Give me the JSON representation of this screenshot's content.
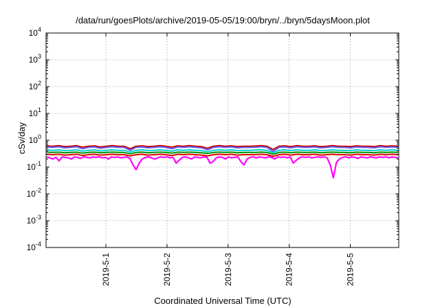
{
  "chart_data": {
    "type": "line",
    "title": "/data/run/goesPlots/archive/2019-05-05/19:00/bryn/../bryn/5daysMoon.plot",
    "xlabel": "Coordinated Universal Time (UTC)",
    "ylabel": "cSv/day",
    "yscale": "log",
    "ylim": [
      0.0001,
      10000
    ],
    "xlim": [
      "2019-04-30 00:30",
      "2019-05-05 19:00"
    ],
    "x_ticks": [
      {
        "date": "2019-05-01",
        "label": "2019-5-1"
      },
      {
        "date": "2019-05-02",
        "label": "2019-5-2"
      },
      {
        "date": "2019-05-03",
        "label": "2019-5-3"
      },
      {
        "date": "2019-05-04",
        "label": "2019-5-4"
      },
      {
        "date": "2019-05-05",
        "label": "2019-5-5"
      }
    ],
    "y_ticks": [
      {
        "value": 0.0001,
        "mantissa": "10",
        "exp": "-4"
      },
      {
        "value": 0.001,
        "mantissa": "10",
        "exp": "-3"
      },
      {
        "value": 0.01,
        "mantissa": "10",
        "exp": "-2"
      },
      {
        "value": 0.1,
        "mantissa": "10",
        "exp": "-1"
      },
      {
        "value": 1,
        "mantissa": "10",
        "exp": "0"
      },
      {
        "value": 10,
        "mantissa": "10",
        "exp": "1"
      },
      {
        "value": 100,
        "mantissa": "10",
        "exp": "2"
      },
      {
        "value": 1000,
        "mantissa": "10",
        "exp": "3"
      },
      {
        "value": 10000,
        "mantissa": "10",
        "exp": "4"
      }
    ],
    "grid": true,
    "series": [
      {
        "color": "#cc0000",
        "values": [
          0.62,
          0.6,
          0.63,
          0.58,
          0.6,
          0.63,
          0.55,
          0.6,
          0.62,
          0.56,
          0.6,
          0.63,
          0.6,
          0.6,
          0.48,
          0.6,
          0.62,
          0.58,
          0.6,
          0.63,
          0.6,
          0.55,
          0.62,
          0.6,
          0.63,
          0.6,
          0.58,
          0.5,
          0.6,
          0.63,
          0.6,
          0.62,
          0.58,
          0.6,
          0.6,
          0.61,
          0.63,
          0.6,
          0.45,
          0.6,
          0.62,
          0.58,
          0.63,
          0.6,
          0.6,
          0.62,
          0.58,
          0.6,
          0.63,
          0.6,
          0.6,
          0.58,
          0.62,
          0.6,
          0.6,
          0.58,
          0.63,
          0.6,
          0.62,
          0.6
        ]
      },
      {
        "color": "#6060ff",
        "values": [
          0.56,
          0.54,
          0.57,
          0.52,
          0.54,
          0.57,
          0.48,
          0.54,
          0.56,
          0.5,
          0.54,
          0.57,
          0.54,
          0.54,
          0.42,
          0.54,
          0.56,
          0.52,
          0.54,
          0.57,
          0.54,
          0.48,
          0.56,
          0.54,
          0.57,
          0.54,
          0.52,
          0.44,
          0.54,
          0.57,
          0.54,
          0.56,
          0.52,
          0.54,
          0.54,
          0.55,
          0.57,
          0.54,
          0.38,
          0.54,
          0.56,
          0.52,
          0.57,
          0.54,
          0.54,
          0.56,
          0.52,
          0.54,
          0.57,
          0.54,
          0.54,
          0.52,
          0.56,
          0.54,
          0.54,
          0.52,
          0.57,
          0.54,
          0.56,
          0.54
        ]
      },
      {
        "color": "#00d0d0",
        "values": [
          0.44,
          0.42,
          0.44,
          0.41,
          0.42,
          0.44,
          0.39,
          0.42,
          0.44,
          0.4,
          0.42,
          0.44,
          0.42,
          0.42,
          0.36,
          0.42,
          0.44,
          0.41,
          0.42,
          0.44,
          0.42,
          0.39,
          0.44,
          0.42,
          0.44,
          0.42,
          0.41,
          0.37,
          0.42,
          0.44,
          0.42,
          0.44,
          0.41,
          0.42,
          0.42,
          0.43,
          0.44,
          0.42,
          0.34,
          0.42,
          0.44,
          0.41,
          0.44,
          0.42,
          0.42,
          0.44,
          0.41,
          0.42,
          0.44,
          0.42,
          0.42,
          0.41,
          0.44,
          0.42,
          0.42,
          0.41,
          0.44,
          0.42,
          0.44,
          0.42
        ]
      },
      {
        "color": "#009000",
        "values": [
          0.36,
          0.35,
          0.36,
          0.34,
          0.35,
          0.36,
          0.33,
          0.35,
          0.36,
          0.34,
          0.35,
          0.36,
          0.35,
          0.35,
          0.31,
          0.35,
          0.36,
          0.34,
          0.35,
          0.36,
          0.35,
          0.33,
          0.36,
          0.35,
          0.36,
          0.35,
          0.34,
          0.32,
          0.35,
          0.36,
          0.35,
          0.36,
          0.34,
          0.35,
          0.35,
          0.35,
          0.36,
          0.35,
          0.3,
          0.35,
          0.36,
          0.34,
          0.36,
          0.35,
          0.35,
          0.36,
          0.34,
          0.35,
          0.36,
          0.35,
          0.35,
          0.34,
          0.36,
          0.35,
          0.35,
          0.34,
          0.36,
          0.35,
          0.36,
          0.35
        ]
      },
      {
        "color": "#e00000",
        "values": [
          0.3,
          0.29,
          0.3,
          0.28,
          0.29,
          0.3,
          0.27,
          0.29,
          0.3,
          0.28,
          0.29,
          0.3,
          0.29,
          0.29,
          0.26,
          0.29,
          0.3,
          0.28,
          0.29,
          0.3,
          0.29,
          0.27,
          0.3,
          0.29,
          0.3,
          0.29,
          0.28,
          0.26,
          0.29,
          0.3,
          0.29,
          0.3,
          0.28,
          0.29,
          0.29,
          0.29,
          0.3,
          0.29,
          0.25,
          0.29,
          0.3,
          0.28,
          0.3,
          0.29,
          0.29,
          0.3,
          0.28,
          0.29,
          0.3,
          0.29,
          0.29,
          0.28,
          0.3,
          0.29,
          0.29,
          0.28,
          0.3,
          0.29,
          0.3,
          0.29
        ]
      },
      {
        "color": "#ff00ff",
        "values": [
          0.24,
          0.22,
          0.2,
          0.23,
          0.17,
          0.24,
          0.23,
          0.22,
          0.2,
          0.24,
          0.23,
          0.21,
          0.24,
          0.23,
          0.22,
          0.24,
          0.23,
          0.24,
          0.22,
          0.23,
          0.2,
          0.24,
          0.23,
          0.24,
          0.22,
          0.23,
          0.24,
          0.21,
          0.12,
          0.08,
          0.14,
          0.2,
          0.23,
          0.24,
          0.22,
          0.2,
          0.22,
          0.24,
          0.23,
          0.24,
          0.22,
          0.23,
          0.14,
          0.18,
          0.23,
          0.24,
          0.22,
          0.2,
          0.24,
          0.23,
          0.22,
          0.24,
          0.23,
          0.14,
          0.16,
          0.22,
          0.24,
          0.23,
          0.2,
          0.24,
          0.22,
          0.23,
          0.24,
          0.16,
          0.12,
          0.2,
          0.23,
          0.24,
          0.22,
          0.24,
          0.23,
          0.22,
          0.24,
          0.23,
          0.2,
          0.24,
          0.23,
          0.24,
          0.22,
          0.24,
          0.14,
          0.18,
          0.22,
          0.24,
          0.23,
          0.24,
          0.22,
          0.23,
          0.24,
          0.23,
          0.24,
          0.22,
          0.12,
          0.04,
          0.15,
          0.2,
          0.23,
          0.24,
          0.22,
          0.24,
          0.23,
          0.21,
          0.24,
          0.23,
          0.22,
          0.24,
          0.23,
          0.22,
          0.24,
          0.23,
          0.24,
          0.22,
          0.24,
          0.23,
          0.22
        ]
      }
    ]
  }
}
